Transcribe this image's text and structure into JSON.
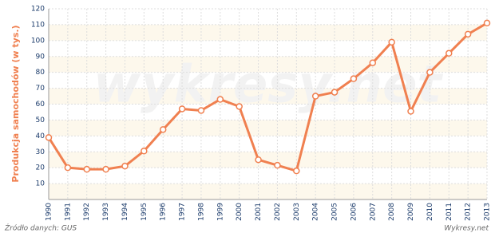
{
  "chart_data": {
    "type": "line",
    "y_label": "Produkcja samochodów (w tys.)",
    "watermark": "wykresy.net",
    "source": "Źródło danych:  GUS",
    "credit": "Wykresy.net",
    "categories": [
      "1990",
      "1991",
      "1992",
      "1993",
      "1994",
      "1995",
      "1996",
      "1997",
      "1998",
      "1999",
      "2000",
      "2001",
      "2002",
      "2003",
      "2004",
      "2005",
      "2006",
      "2007",
      "2008",
      "2009",
      "2010",
      "2011",
      "2012",
      "2013"
    ],
    "series": [
      {
        "color": "#f08050",
        "values": [
          39,
          20,
          19,
          19,
          21,
          30.5,
          44,
          57,
          56,
          63,
          58.5,
          25,
          21.5,
          18,
          65,
          67.5,
          76,
          86,
          99,
          55.5,
          80,
          92,
          104,
          111
        ]
      }
    ],
    "ylim": [
      0,
      120
    ],
    "yticks": [
      10,
      20,
      30,
      40,
      50,
      60,
      70,
      80,
      90,
      100,
      110,
      120
    ],
    "grid": true
  }
}
